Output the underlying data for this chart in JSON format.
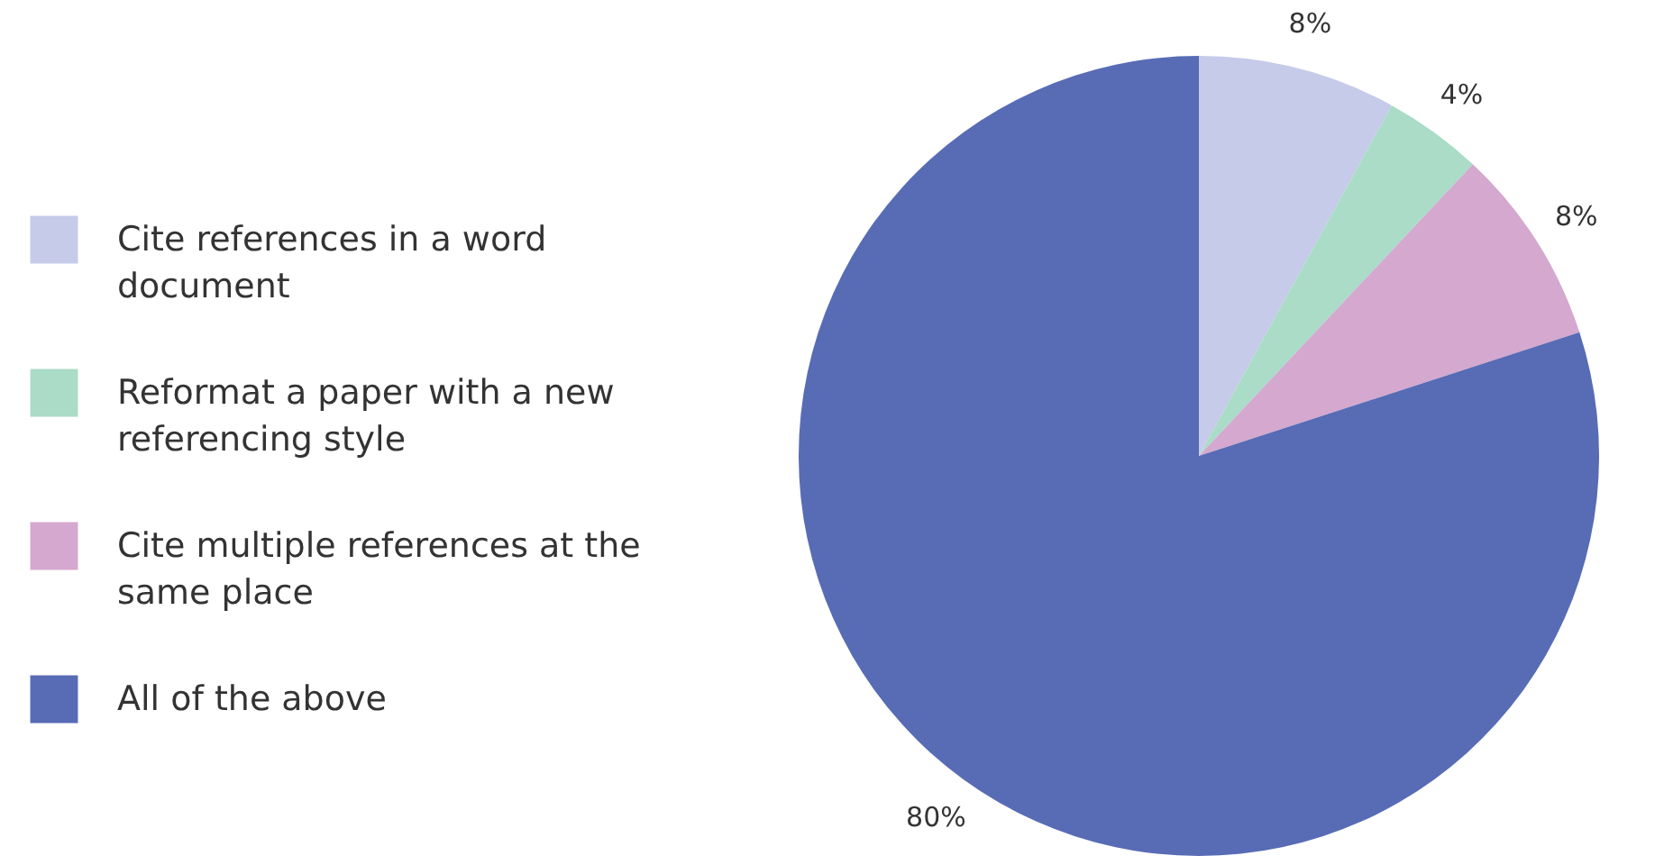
{
  "chart_data": {
    "type": "pie",
    "categories": [
      "Cite references in a word document",
      "Reformat a paper with a new referencing style",
      "Cite multiple references at the same place",
      "All of the above"
    ],
    "values": [
      8,
      4,
      8,
      80
    ],
    "value_labels": [
      "8%",
      "4%",
      "8%",
      "80%"
    ],
    "colors": [
      "#c5cbe8",
      "#aadcc8",
      "#d4a8cf",
      "#586bb5"
    ],
    "legend": "left"
  }
}
